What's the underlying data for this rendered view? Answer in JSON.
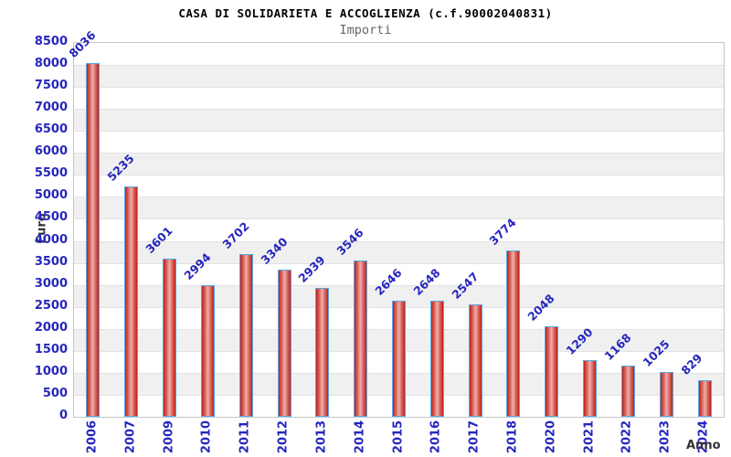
{
  "chart_data": {
    "type": "bar",
    "title": "CASA DI SOLIDARIETA E ACCOGLIENZA (c.f.90002040831)",
    "subtitle": "Importi",
    "xlabel": "Anno",
    "ylabel": "Euro",
    "categories": [
      "2006",
      "2007",
      "2009",
      "2010",
      "2011",
      "2012",
      "2013",
      "2014",
      "2015",
      "2016",
      "2017",
      "2018",
      "2020",
      "2021",
      "2022",
      "2023",
      "2024"
    ],
    "values": [
      8036,
      5235,
      3601,
      2994,
      3702,
      3340,
      2939,
      3546,
      2646,
      2648,
      2547,
      3774,
      2048,
      1290,
      1168,
      1025,
      829
    ],
    "ylim": [
      0,
      8500
    ],
    "ytick_step": 500,
    "yticks": [
      0,
      500,
      1000,
      1500,
      2000,
      2500,
      3000,
      3500,
      4000,
      4500,
      5000,
      5500,
      6000,
      6500,
      7000,
      7500,
      8000,
      8500
    ],
    "grid": "horizontal-bands",
    "legend": "none",
    "bar_labels_rotation_deg": -45,
    "x_labels_rotation_deg": -90,
    "colors": {
      "bar_edge": "#c31d1d",
      "bar_highlight": "#f0afa8",
      "bar_border": "#58a8e2",
      "tick_label": "#2626bd",
      "value_label": "#2626bd",
      "axis_title": "#333333",
      "title": "#000000",
      "subtitle": "#666666",
      "band_gray": "#f0f0f0",
      "band_white": "#ffffff",
      "grid_line": "#e2e2e2",
      "plot_border": "#c6c6c6"
    }
  }
}
